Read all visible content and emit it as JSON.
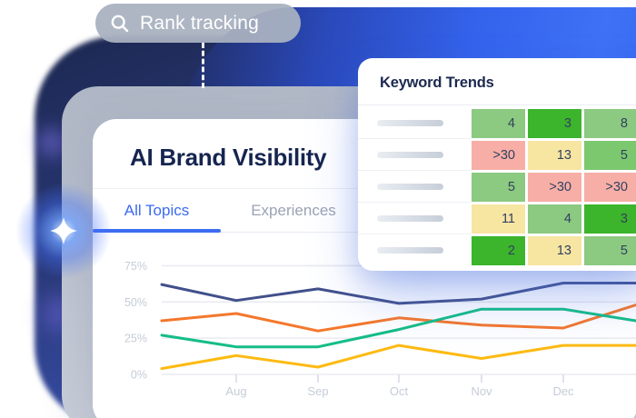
{
  "badge": {
    "label": "Rank tracking",
    "icon": "search-icon"
  },
  "keyword_card": {
    "title": "Keyword Trends",
    "rows": [
      {
        "cells": [
          {
            "value": "4",
            "color": "#8cc981"
          },
          {
            "value": "3",
            "color": "#3cb42c"
          },
          {
            "value": "8",
            "color": "#8cc981"
          }
        ]
      },
      {
        "cells": [
          {
            "value": ">30",
            "color": "#f7aea6"
          },
          {
            "value": "13",
            "color": "#f7e5a2"
          },
          {
            "value": "5",
            "color": "#7cc86f"
          }
        ]
      },
      {
        "cells": [
          {
            "value": "5",
            "color": "#8cc981"
          },
          {
            "value": ">30",
            "color": "#f7aea6"
          },
          {
            "value": ">30",
            "color": "#f7aea6"
          }
        ]
      },
      {
        "cells": [
          {
            "value": "11",
            "color": "#f7e5a2"
          },
          {
            "value": "4",
            "color": "#8cc981"
          },
          {
            "value": "3",
            "color": "#3cb42c"
          }
        ]
      },
      {
        "cells": [
          {
            "value": "2",
            "color": "#3cb42c"
          },
          {
            "value": "13",
            "color": "#f7e5a2"
          },
          {
            "value": "5",
            "color": "#8cc981"
          }
        ]
      }
    ]
  },
  "visibility_card": {
    "title": "AI Brand Visibility",
    "tabs": [
      {
        "label": "All Topics",
        "active": true
      },
      {
        "label": "Experiences",
        "active": false
      }
    ]
  },
  "chart_data": {
    "type": "line",
    "x_tick_labels": [
      "Aug",
      "Sep",
      "Oct",
      "Nov",
      "Dec"
    ],
    "x_note": "each line has one unlabeled point before Aug and one after Dec",
    "y_tick_labels": [
      "0%",
      "25%",
      "50%",
      "75%"
    ],
    "y_tick_values": [
      0,
      25,
      50,
      75
    ],
    "ylim": [
      0,
      80
    ],
    "grid": true,
    "legend": "none",
    "series": [
      {
        "name": "series-navy",
        "color": "#41508a",
        "values_pct": [
          62,
          51,
          59,
          49,
          52,
          63,
          63
        ]
      },
      {
        "name": "series-orange",
        "color": "#f5772b",
        "values_pct": [
          37,
          42,
          30,
          39,
          34,
          32,
          48
        ]
      },
      {
        "name": "series-green",
        "color": "#14bd87",
        "values_pct": [
          27,
          19,
          19,
          31,
          45,
          45,
          37
        ]
      },
      {
        "name": "series-yellow",
        "color": "#fdba12",
        "values_pct": [
          4,
          13,
          5,
          20,
          11,
          20,
          20
        ]
      }
    ],
    "axis_text_color": "#c5ccd7",
    "gridline_color": "#e9ebf1"
  },
  "palette": {
    "blob_blue": "#3463ec",
    "blob_navy": "#2b3a7a",
    "tablet_gray": "#b9c0cc",
    "pill_gray": "#a9b1c0",
    "heading_navy": "#162550",
    "accent_blue": "#3a6af0",
    "inactive_gray": "#9aa3b4"
  }
}
